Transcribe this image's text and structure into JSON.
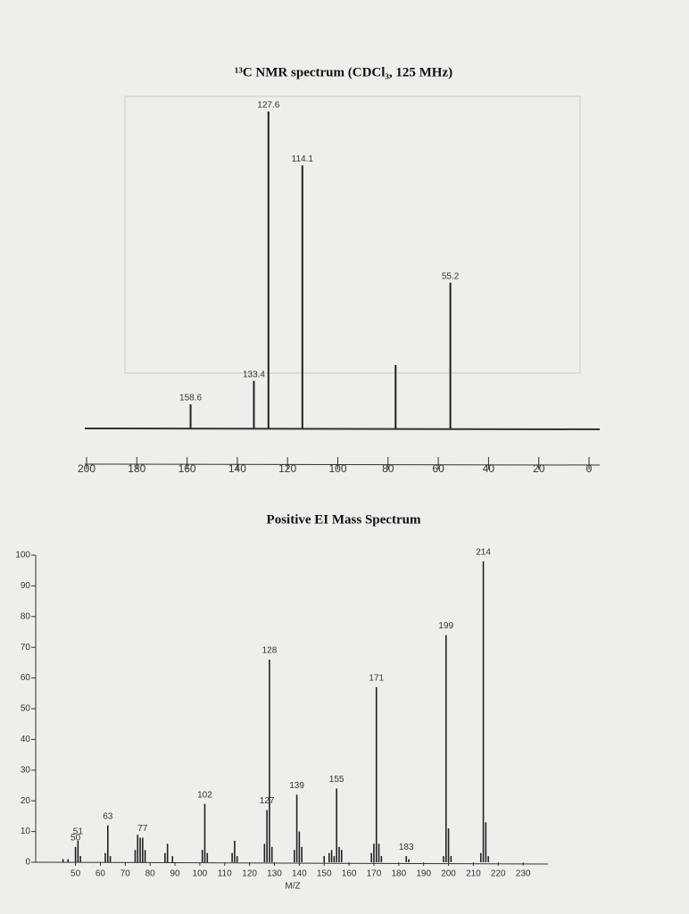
{
  "chart_data": [
    {
      "type": "stick",
      "title": "¹³C NMR spectrum (CDCl₃, 125 MHz)",
      "xlim": [
        200,
        0
      ],
      "xticks": [
        200,
        180,
        160,
        140,
        120,
        100,
        80,
        60,
        40,
        20,
        0
      ],
      "series": [
        {
          "show_labels": true,
          "color": "#222222",
          "x": [
            158.6,
            133.4,
            127.6,
            114.1,
            55.2
          ],
          "values": [
            7.6,
            15,
            100,
            83,
            46
          ]
        },
        {
          "show_labels": false,
          "color": "#222222",
          "x": [
            77.0
          ],
          "values": [
            20
          ]
        }
      ]
    },
    {
      "type": "bar",
      "title": "Positive EI Mass Spectrum",
      "xlabel": "M/Z",
      "xlim": [
        34,
        240
      ],
      "xticks": [
        50,
        60,
        70,
        80,
        90,
        100,
        110,
        120,
        130,
        140,
        150,
        160,
        170,
        180,
        190,
        200,
        210,
        220,
        230
      ],
      "ylim": [
        0,
        100
      ],
      "yticks": [
        0,
        10,
        20,
        30,
        40,
        50,
        60,
        70,
        80,
        90,
        100
      ],
      "series": [
        {
          "show_labels": true,
          "color": "#222222",
          "x": [
            50,
            51,
            63,
            77,
            102,
            127,
            128,
            139,
            155,
            171,
            183,
            199,
            214
          ],
          "values": [
            5,
            7,
            12,
            8,
            19,
            17,
            66,
            22,
            24,
            57,
            2,
            74,
            98
          ]
        },
        {
          "show_labels": false,
          "color": "#222222",
          "x": [
            45,
            47,
            52,
            62,
            64,
            74,
            75,
            76,
            78,
            86,
            87,
            89,
            101,
            103,
            113,
            114,
            115,
            126,
            129,
            138,
            140,
            141,
            150,
            152,
            153,
            154,
            156,
            157,
            169,
            170,
            172,
            173,
            184,
            198,
            200,
            201,
            213,
            215,
            216
          ],
          "values": [
            1,
            1,
            2,
            3,
            2,
            4,
            9,
            8,
            4,
            3,
            6,
            2,
            4,
            3,
            3,
            7,
            2,
            6,
            5,
            4,
            10,
            5,
            2,
            3,
            4,
            2,
            5,
            4,
            3,
            6,
            6,
            2,
            1,
            2,
            11,
            2,
            3,
            13,
            2
          ]
        }
      ]
    }
  ]
}
